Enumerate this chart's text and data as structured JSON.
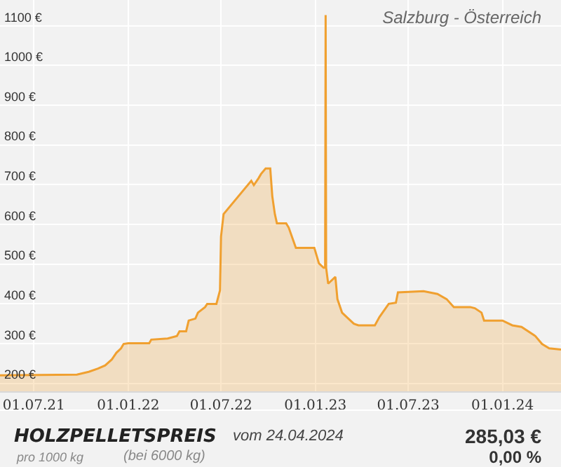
{
  "chart_data": {
    "type": "area",
    "title": "Salzburg - Österreich",
    "annotations": [
      "HOLZPELLETSPREIS",
      "vom 24.04.2024",
      "pro 1000 kg",
      "(bei 6000 kg)",
      "285,03 €",
      "0,00 %"
    ],
    "series": [
      {
        "color": "#f0a030",
        "x": [
          "2021-04-26",
          "2021-09-23",
          "2021-10-16",
          "2021-11-03",
          "2021-11-17",
          "2021-11-30",
          "2021-12-09",
          "2021-12-18",
          "2021-12-23",
          "2022-01-01",
          "2022-02-11",
          "2022-02-15",
          "2022-03-19",
          "2022-04-06",
          "2022-04-11",
          "2022-04-24",
          "2022-04-29",
          "2022-05-12",
          "2022-05-17",
          "2022-05-31",
          "2022-06-04",
          "2022-06-22",
          "2022-06-29",
          "2022-07-01",
          "2022-07-06",
          "2022-08-29",
          "2022-09-03",
          "2022-09-12",
          "2022-09-17",
          "2022-09-26",
          "2022-10-05",
          "2022-10-09",
          "2022-10-14",
          "2022-10-18",
          "2022-10-23",
          "2022-11-05",
          "2022-11-10",
          "2022-11-24",
          "2022-11-28",
          "2022-12-30",
          "2023-01-08",
          "2023-01-17",
          "2023-01-20",
          "2023-01-21",
          "2023-01-22",
          "2023-01-26",
          "2023-02-09",
          "2023-02-13",
          "2023-02-22",
          "2023-03-03",
          "2023-03-17",
          "2023-03-26",
          "2023-04-27",
          "2023-05-06",
          "2023-05-24",
          "2023-06-07",
          "2023-06-11",
          "2023-07-31",
          "2023-08-27",
          "2023-09-14",
          "2023-09-28",
          "2023-10-30",
          "2023-11-08",
          "2023-11-21",
          "2023-11-26",
          "2024-01-01",
          "2024-01-20",
          "2024-02-07",
          "2024-03-05",
          "2024-03-18",
          "2024-04-01",
          "2024-04-24"
        ],
        "values": [
          220,
          222,
          229,
          237,
          245,
          260,
          277,
          288,
          299,
          301,
          301,
          310,
          313,
          319,
          331,
          331,
          358,
          363,
          378,
          392,
          400,
          400,
          434,
          569,
          626,
          710,
          699,
          716,
          727,
          741,
          741,
          671,
          626,
          603,
          603,
          603,
          592,
          541,
          541,
          541,
          502,
          491,
          491,
          1127,
          491,
          451,
          468,
          412,
          378,
          367,
          350,
          346,
          346,
          367,
          400,
          403,
          429,
          432,
          425,
          412,
          392,
          392,
          389,
          378,
          358,
          358,
          346,
          342,
          319,
          299,
          288,
          285
        ]
      }
    ],
    "xlim": [
      "2021-04-26",
      "2024-04-24"
    ],
    "xticks": [
      {
        "value": "2021-07-01",
        "label": "01.07.21"
      },
      {
        "value": "2022-01-01",
        "label": "01.01.22"
      },
      {
        "value": "2022-07-01",
        "label": "01.07.22"
      },
      {
        "value": "2023-01-01",
        "label": "01.01.23"
      },
      {
        "value": "2023-07-01",
        "label": "01.07.23"
      },
      {
        "value": "2024-01-01",
        "label": "01.01.24"
      }
    ],
    "ylim": [
      180,
      1165
    ],
    "yticks": [
      {
        "value": 200,
        "label": "200 €"
      },
      {
        "value": 300,
        "label": "300 €"
      },
      {
        "value": 400,
        "label": "400 €"
      },
      {
        "value": 500,
        "label": "500 €"
      },
      {
        "value": 600,
        "label": "600 €"
      },
      {
        "value": 700,
        "label": "700 €"
      },
      {
        "value": 800,
        "label": "800 €"
      },
      {
        "value": 900,
        "label": "900 €"
      },
      {
        "value": 1000,
        "label": "1000 €"
      },
      {
        "value": 1100,
        "label": "1100 €"
      }
    ],
    "grid": true,
    "marker": "none",
    "line_style": "solid"
  }
}
